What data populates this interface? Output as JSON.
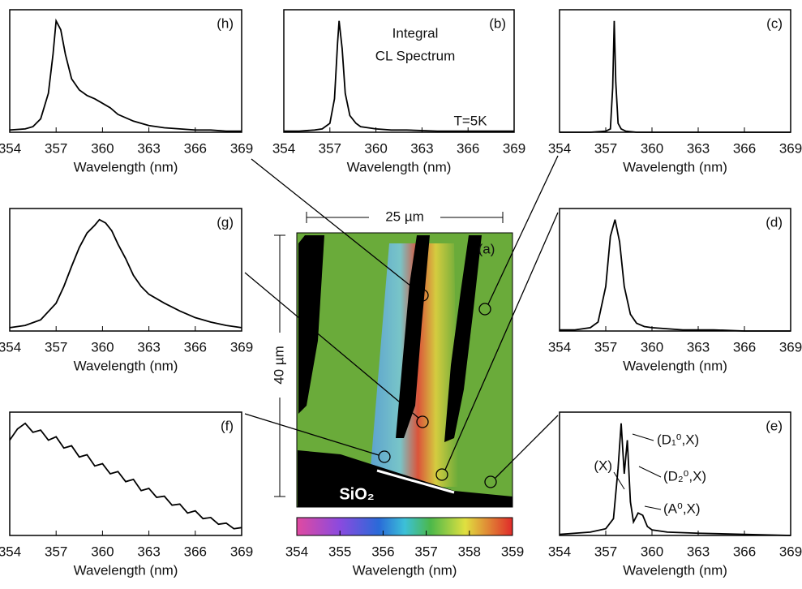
{
  "chart_data": [
    {
      "type": "line",
      "panel_label": "(h)",
      "x_label": "Wavelength (nm)",
      "xlim": [
        354,
        369
      ],
      "xticks": [
        354,
        357,
        360,
        363,
        366,
        369
      ],
      "ylim": [
        0,
        110
      ],
      "color": "#000000",
      "x": [
        354,
        355,
        355.5,
        356,
        356.5,
        356.8,
        357,
        357.3,
        357.6,
        358,
        358.5,
        359,
        359.5,
        360,
        360.5,
        361,
        362,
        363,
        364,
        365,
        366,
        367,
        368,
        369
      ],
      "values": [
        2,
        3,
        5,
        12,
        35,
        70,
        100,
        92,
        70,
        48,
        38,
        33,
        30,
        26,
        22,
        16,
        10,
        6,
        4,
        3,
        2,
        2,
        1,
        1
      ]
    },
    {
      "type": "line",
      "panel_label": "(b)",
      "x_label": "Wavelength (nm)",
      "xlim": [
        354,
        369
      ],
      "xticks": [
        354,
        357,
        360,
        363,
        366,
        369
      ],
      "ylim": [
        0,
        110
      ],
      "color": "#000000",
      "annotations": [
        "Integral",
        "CL Spectrum",
        "T=5K"
      ],
      "x": [
        354,
        355,
        356,
        356.5,
        357,
        357.3,
        357.5,
        357.6,
        357.8,
        358,
        358.3,
        358.7,
        359,
        360,
        361,
        362,
        364,
        366,
        369
      ],
      "values": [
        1,
        1,
        2,
        3,
        8,
        30,
        80,
        100,
        75,
        35,
        15,
        8,
        5,
        3,
        2,
        2,
        1,
        1,
        1
      ]
    },
    {
      "type": "line",
      "panel_label": "(c)",
      "x_label": "Wavelength (nm)",
      "xlim": [
        354,
        369
      ],
      "xticks": [
        354,
        357,
        360,
        363,
        366,
        369
      ],
      "ylim": [
        0,
        110
      ],
      "color": "#000000",
      "x": [
        354,
        356,
        357,
        357.3,
        357.45,
        357.55,
        357.65,
        357.8,
        358,
        358.3,
        359,
        361,
        365,
        369
      ],
      "values": [
        0,
        0,
        1,
        3,
        40,
        100,
        45,
        8,
        3,
        1,
        0,
        0,
        0,
        0
      ]
    },
    {
      "type": "line",
      "panel_label": "(g)",
      "x_label": "Wavelength (nm)",
      "xlim": [
        354,
        369
      ],
      "xticks": [
        354,
        357,
        360,
        363,
        366,
        369
      ],
      "ylim": [
        0,
        110
      ],
      "color": "#000000",
      "x": [
        354,
        355,
        356,
        357,
        357.5,
        358,
        358.5,
        359,
        359.5,
        359.8,
        360.2,
        360.6,
        361,
        361.5,
        362,
        362.5,
        363,
        364,
        365,
        366,
        367,
        368,
        369
      ],
      "values": [
        3,
        5,
        10,
        25,
        40,
        58,
        75,
        88,
        95,
        100,
        97,
        90,
        78,
        65,
        50,
        40,
        33,
        25,
        18,
        12,
        8,
        5,
        3
      ]
    },
    {
      "type": "line",
      "panel_label": "(d)",
      "x_label": "Wavelength (nm)",
      "xlim": [
        354,
        369
      ],
      "xticks": [
        354,
        357,
        360,
        363,
        366,
        369
      ],
      "ylim": [
        0,
        110
      ],
      "color": "#000000",
      "x": [
        354,
        355,
        356,
        356.5,
        357,
        357.3,
        357.6,
        357.9,
        358.2,
        358.6,
        359,
        359.5,
        360,
        361,
        362,
        364,
        366,
        369
      ],
      "values": [
        1,
        1,
        3,
        8,
        40,
        85,
        100,
        80,
        40,
        15,
        7,
        4,
        3,
        2,
        1,
        1,
        0,
        0
      ]
    },
    {
      "type": "line",
      "panel_label": "(f)",
      "x_label": "Wavelength (nm)",
      "xlim": [
        354,
        369
      ],
      "xticks": [
        354,
        357,
        360,
        363,
        366,
        369
      ],
      "ylim": [
        0,
        110
      ],
      "color": "#000000",
      "x": [
        354,
        354.5,
        355,
        355.5,
        356,
        356.5,
        357,
        357.5,
        358,
        358.5,
        359,
        359.5,
        360,
        360.5,
        361,
        361.5,
        362,
        362.5,
        363,
        363.5,
        364,
        364.5,
        365,
        365.5,
        366,
        366.5,
        367,
        367.5,
        368,
        368.5,
        369
      ],
      "values": [
        85,
        95,
        100,
        92,
        94,
        85,
        88,
        78,
        80,
        70,
        72,
        62,
        64,
        55,
        57,
        48,
        50,
        40,
        42,
        34,
        35,
        27,
        28,
        20,
        22,
        15,
        16,
        10,
        11,
        6,
        7
      ]
    },
    {
      "type": "line",
      "panel_label": "(e)",
      "x_label": "Wavelength (nm)",
      "xlim": [
        354,
        369
      ],
      "xticks": [
        354,
        357,
        360,
        363,
        366,
        369
      ],
      "ylim": [
        0,
        110
      ],
      "color": "#000000",
      "annotations": [
        "(X)",
        "(D₁⁰,X)",
        "(D₂⁰,X)",
        "(A⁰,X)"
      ],
      "x": [
        354,
        355,
        356,
        357,
        357.5,
        357.8,
        358,
        358.2,
        358.4,
        358.6,
        358.8,
        359.1,
        359.4,
        359.7,
        360,
        361,
        363,
        366,
        369
      ],
      "values": [
        1,
        2,
        3,
        6,
        15,
        60,
        100,
        55,
        85,
        30,
        12,
        20,
        18,
        8,
        5,
        3,
        2,
        1,
        0
      ]
    },
    {
      "type": "colorbar",
      "x_label": "Wavelength (nm)",
      "xlim": [
        354,
        359
      ],
      "xticks": [
        354,
        355,
        356,
        357,
        358,
        359
      ]
    }
  ],
  "map": {
    "panel_label": "(a)",
    "scale_x": "25 µm",
    "scale_y": "40 µm",
    "substrate": "SiO₂"
  }
}
